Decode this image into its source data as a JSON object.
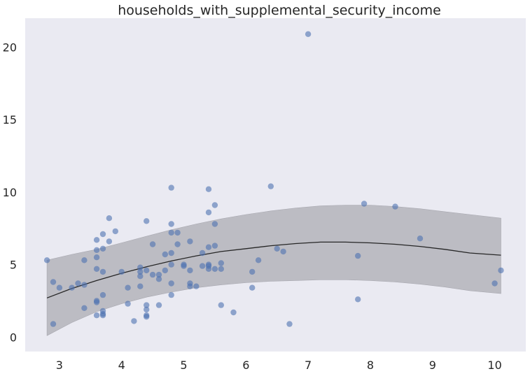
{
  "chart_data": {
    "type": "scatter",
    "title": "households_with_supplemental_security_income",
    "xlabel": "",
    "ylabel": "",
    "xlim": [
      2.45,
      10.5
    ],
    "ylim": [
      -1.0,
      22.0
    ],
    "grid": false,
    "xticks": [
      3,
      4,
      5,
      6,
      7,
      8,
      9,
      10
    ],
    "yticks": [
      0,
      5,
      10,
      15,
      20
    ],
    "colors": {
      "background": "#eaeaf2",
      "points": "#4c72b0",
      "band": "#b9b9c0",
      "fit_line": "#262626"
    },
    "points": [
      [
        2.8,
        5.3
      ],
      [
        2.9,
        3.8
      ],
      [
        2.9,
        0.9
      ],
      [
        3.0,
        3.4
      ],
      [
        3.2,
        3.4
      ],
      [
        3.3,
        3.7
      ],
      [
        3.4,
        3.6
      ],
      [
        3.4,
        5.3
      ],
      [
        3.4,
        2.0
      ],
      [
        3.6,
        6.7
      ],
      [
        3.6,
        6.0
      ],
      [
        3.6,
        5.5
      ],
      [
        3.6,
        4.7
      ],
      [
        3.6,
        2.5
      ],
      [
        3.6,
        2.4
      ],
      [
        3.6,
        1.5
      ],
      [
        3.7,
        7.1
      ],
      [
        3.7,
        6.1
      ],
      [
        3.7,
        4.5
      ],
      [
        3.7,
        2.9
      ],
      [
        3.7,
        1.8
      ],
      [
        3.7,
        1.6
      ],
      [
        3.7,
        1.5
      ],
      [
        3.8,
        8.2
      ],
      [
        3.8,
        6.6
      ],
      [
        3.9,
        7.3
      ],
      [
        4.0,
        4.5
      ],
      [
        4.1,
        3.4
      ],
      [
        4.1,
        2.3
      ],
      [
        4.2,
        1.1
      ],
      [
        4.3,
        4.8
      ],
      [
        4.3,
        4.5
      ],
      [
        4.3,
        4.2
      ],
      [
        4.3,
        3.5
      ],
      [
        4.4,
        8.0
      ],
      [
        4.4,
        4.6
      ],
      [
        4.4,
        2.2
      ],
      [
        4.4,
        1.9
      ],
      [
        4.4,
        1.5
      ],
      [
        4.4,
        1.4
      ],
      [
        4.5,
        6.4
      ],
      [
        4.5,
        4.3
      ],
      [
        4.6,
        4.3
      ],
      [
        4.6,
        4.0
      ],
      [
        4.6,
        2.2
      ],
      [
        4.7,
        5.7
      ],
      [
        4.7,
        4.6
      ],
      [
        4.8,
        10.3
      ],
      [
        4.8,
        7.8
      ],
      [
        4.8,
        7.2
      ],
      [
        4.8,
        5.8
      ],
      [
        4.8,
        5.0
      ],
      [
        4.8,
        3.7
      ],
      [
        4.8,
        2.9
      ],
      [
        4.9,
        7.2
      ],
      [
        4.9,
        6.4
      ],
      [
        5.0,
        5.0
      ],
      [
        5.0,
        4.9
      ],
      [
        5.1,
        6.6
      ],
      [
        5.1,
        4.6
      ],
      [
        5.1,
        3.7
      ],
      [
        5.1,
        3.5
      ],
      [
        5.2,
        3.5
      ],
      [
        5.3,
        5.8
      ],
      [
        5.3,
        4.9
      ],
      [
        5.4,
        10.2
      ],
      [
        5.4,
        8.6
      ],
      [
        5.4,
        6.2
      ],
      [
        5.4,
        5.0
      ],
      [
        5.4,
        4.9
      ],
      [
        5.4,
        4.7
      ],
      [
        5.5,
        9.1
      ],
      [
        5.5,
        7.8
      ],
      [
        5.5,
        6.3
      ],
      [
        5.5,
        4.7
      ],
      [
        5.6,
        5.1
      ],
      [
        5.6,
        4.7
      ],
      [
        5.6,
        2.2
      ],
      [
        5.8,
        1.7
      ],
      [
        6.1,
        4.5
      ],
      [
        6.1,
        3.4
      ],
      [
        6.2,
        5.3
      ],
      [
        6.4,
        10.4
      ],
      [
        6.5,
        6.1
      ],
      [
        6.6,
        5.9
      ],
      [
        6.7,
        0.9
      ],
      [
        7.0,
        20.9
      ],
      [
        7.8,
        5.6
      ],
      [
        7.8,
        2.6
      ],
      [
        7.9,
        9.2
      ],
      [
        8.4,
        9.0
      ],
      [
        8.8,
        6.8
      ],
      [
        10.0,
        3.7
      ],
      [
        10.1,
        4.6
      ]
    ],
    "fit": {
      "x": [
        2.8,
        3.2,
        3.6,
        4.0,
        4.4,
        4.8,
        5.2,
        5.6,
        6.0,
        6.4,
        6.8,
        7.2,
        7.6,
        8.0,
        8.4,
        8.8,
        9.2,
        9.6,
        10.1
      ],
      "y": [
        2.7,
        3.35,
        3.9,
        4.4,
        4.85,
        5.25,
        5.6,
        5.9,
        6.1,
        6.3,
        6.45,
        6.55,
        6.55,
        6.5,
        6.4,
        6.25,
        6.05,
        5.8,
        5.65
      ],
      "lower": [
        0.1,
        1.0,
        1.75,
        2.3,
        2.75,
        3.1,
        3.4,
        3.6,
        3.75,
        3.85,
        3.9,
        3.95,
        3.95,
        3.9,
        3.8,
        3.65,
        3.45,
        3.2,
        3.0
      ],
      "upper": [
        5.3,
        5.7,
        6.05,
        6.5,
        6.95,
        7.4,
        7.8,
        8.15,
        8.45,
        8.7,
        8.9,
        9.05,
        9.1,
        9.1,
        9.0,
        8.85,
        8.65,
        8.45,
        8.2
      ]
    }
  }
}
